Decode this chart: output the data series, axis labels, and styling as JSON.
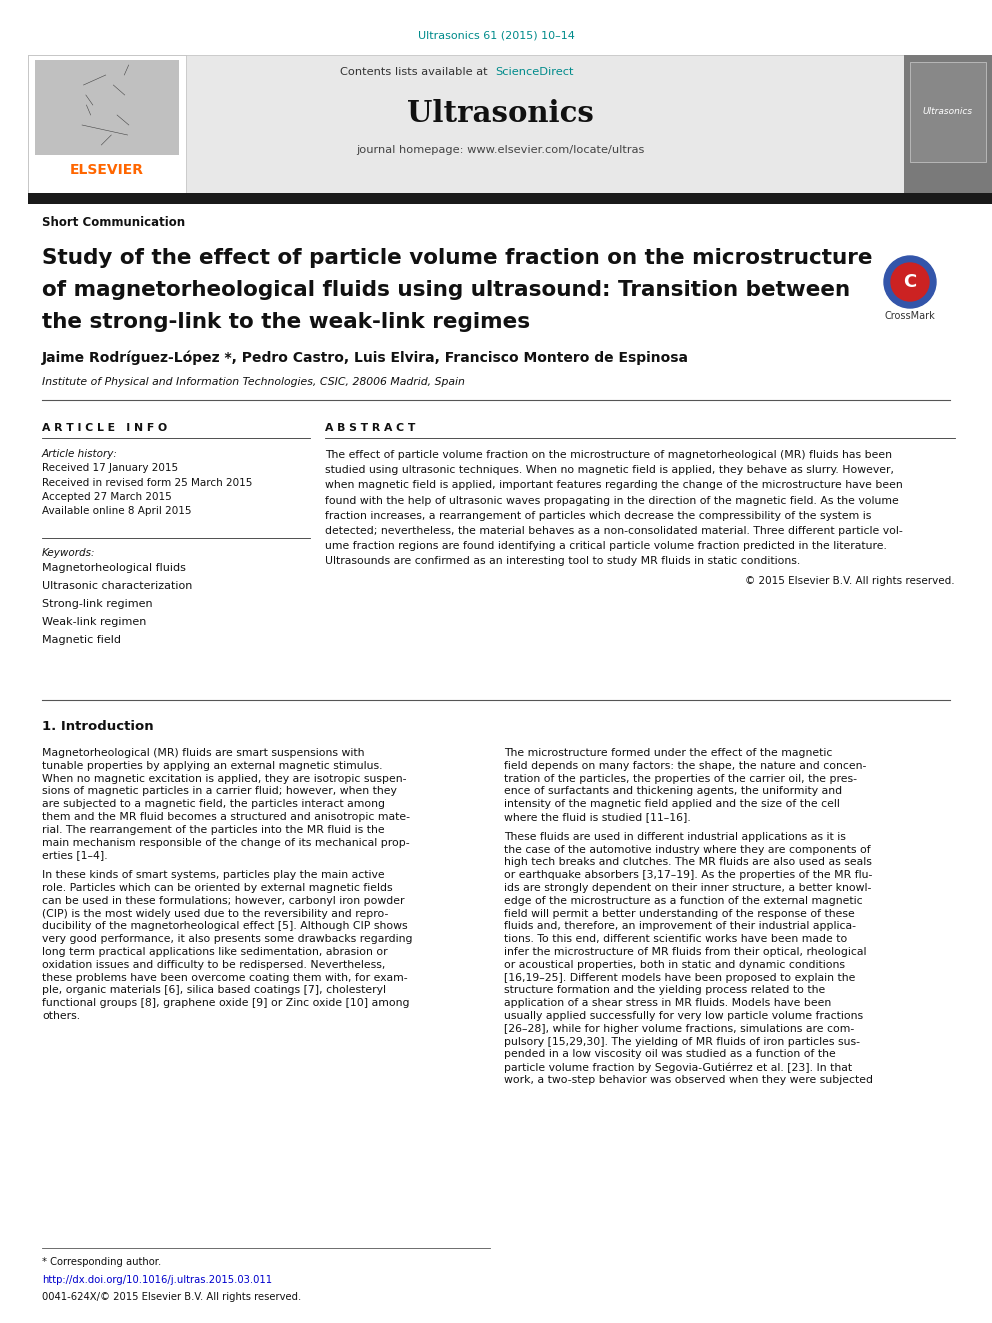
{
  "journal_ref": "Ultrasonics 61 (2015) 10–14",
  "journal_ref_color": "#008B8B",
  "contents_text": "Contents lists available at ",
  "sciencedirect_text": "ScienceDirect",
  "sciencedirect_color": "#008B8B",
  "journal_name": "Ultrasonics",
  "homepage_text": "journal homepage: www.elsevier.com/locate/ultras",
  "elsevier_color": "#FF6600",
  "section_label": "Short Communication",
  "paper_title_line1": "Study of the effect of particle volume fraction on the microstructure",
  "paper_title_line2": "of magnetorheological fluids using ultrasound: Transition between",
  "paper_title_line3": "the strong-link to the weak-link regimes",
  "authors": "Jaime Rodríguez-López *, Pedro Castro, Luis Elvira, Francisco Montero de Espinosa",
  "affiliation": "Institute of Physical and Information Technologies, CSIC, 28006 Madrid, Spain",
  "article_info_header": "A R T I C L E   I N F O",
  "article_history_label": "Article history:",
  "received1": "Received 17 January 2015",
  "received2": "Received in revised form 25 March 2015",
  "accepted": "Accepted 27 March 2015",
  "available": "Available online 8 April 2015",
  "keywords_label": "Keywords:",
  "keyword1": "Magnetorheological fluids",
  "keyword2": "Ultrasonic characterization",
  "keyword3": "Strong-link regimen",
  "keyword4": "Weak-link regimen",
  "keyword5": "Magnetic field",
  "abstract_header": "A B S T R A C T",
  "abstract_text": "The effect of particle volume fraction on the microstructure of magnetorheological (MR) fluids has been\nstudied using ultrasonic techniques. When no magnetic field is applied, they behave as slurry. However,\nwhen magnetic field is applied, important features regarding the change of the microstructure have been\nfound with the help of ultrasonic waves propagating in the direction of the magnetic field. As the volume\nfraction increases, a rearrangement of particles which decrease the compressibility of the system is\ndetected; nevertheless, the material behaves as a non-consolidated material. Three different particle vol-\nume fraction regions are found identifying a critical particle volume fraction predicted in the literature.\nUltrasounds are confirmed as an interesting tool to study MR fluids in static conditions.",
  "copyright": "© 2015 Elsevier B.V. All rights reserved.",
  "intro_header": "1. Introduction",
  "intro_col1": [
    "Magnetorheological (MR) fluids are smart suspensions with",
    "tunable properties by applying an external magnetic stimulus.",
    "When no magnetic excitation is applied, they are isotropic suspen-",
    "sions of magnetic particles in a carrier fluid; however, when they",
    "are subjected to a magnetic field, the particles interact among",
    "them and the MR fluid becomes a structured and anisotropic mate-",
    "rial. The rearrangement of the particles into the MR fluid is the",
    "main mechanism responsible of the change of its mechanical prop-",
    "erties [1–4].",
    "",
    "In these kinds of smart systems, particles play the main active",
    "role. Particles which can be oriented by external magnetic fields",
    "can be used in these formulations; however, carbonyl iron powder",
    "(CIP) is the most widely used due to the reversibility and repro-",
    "ducibility of the magnetorheological effect [5]. Although CIP shows",
    "very good performance, it also presents some drawbacks regarding",
    "long term practical applications like sedimentation, abrasion or",
    "oxidation issues and difficulty to be redispersed. Nevertheless,",
    "these problems have been overcome coating them with, for exam-",
    "ple, organic materials [6], silica based coatings [7], cholesteryl",
    "functional groups [8], graphene oxide [9] or Zinc oxide [10] among",
    "others."
  ],
  "intro_col2": [
    "The microstructure formed under the effect of the magnetic",
    "field depends on many factors: the shape, the nature and concen-",
    "tration of the particles, the properties of the carrier oil, the pres-",
    "ence of surfactants and thickening agents, the uniformity and",
    "intensity of the magnetic field applied and the size of the cell",
    "where the fluid is studied [11–16].",
    "",
    "These fluids are used in different industrial applications as it is",
    "the case of the automotive industry where they are components of",
    "high tech breaks and clutches. The MR fluids are also used as seals",
    "or earthquake absorbers [3,17–19]. As the properties of the MR flu-",
    "ids are strongly dependent on their inner structure, a better knowl-",
    "edge of the microstructure as a function of the external magnetic",
    "field will permit a better understanding of the response of these",
    "fluids and, therefore, an improvement of their industrial applica-",
    "tions. To this end, different scientific works have been made to",
    "infer the microstructure of MR fluids from their optical, rheological",
    "or acoustical properties, both in static and dynamic conditions",
    "[16,19–25]. Different models have been proposed to explain the",
    "structure formation and the yielding process related to the",
    "application of a shear stress in MR fluids. Models have been",
    "usually applied successfully for very low particle volume fractions",
    "[26–28], while for higher volume fractions, simulations are com-",
    "pulsory [15,29,30]. The yielding of MR fluids of iron particles sus-",
    "pended in a low viscosity oil was studied as a function of the",
    "particle volume fraction by Segovia-Gutiérrez et al. [23]. In that",
    "work, a two-step behavior was observed when they were subjected"
  ],
  "footnote_corresponding": "* Corresponding author.",
  "footnote_doi": "http://dx.doi.org/10.1016/j.ultras.2015.03.011",
  "footnote_doi_color": "#0000CC",
  "footnote_issn": "0041-624X/© 2015 Elsevier B.V. All rights reserved.",
  "bg_header_color": "#E8E8E8",
  "black_bar_color": "#1a1a1a",
  "elsevier_logo_color": "#FF6600",
  "gray_sidebar_color": "#7a7a7a"
}
